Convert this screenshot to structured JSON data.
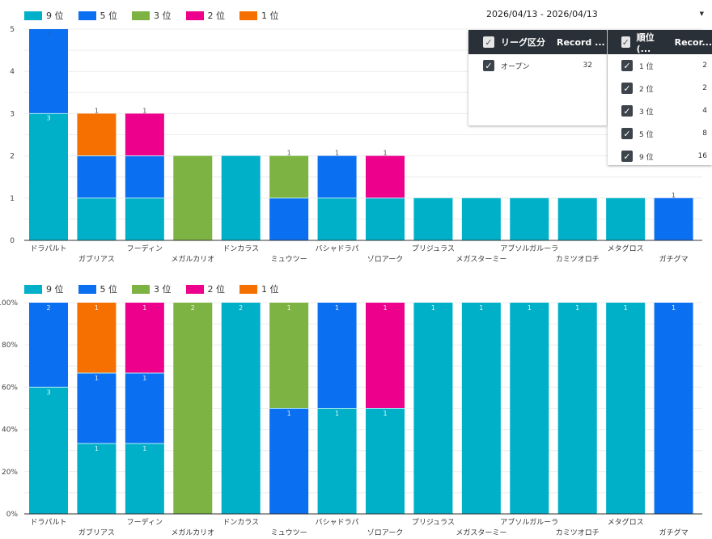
{
  "legend": [
    {
      "label": "9 位",
      "color": "#00b0c8"
    },
    {
      "label": "5 位",
      "color": "#0a6ff0"
    },
    {
      "label": "3 位",
      "color": "#7cb342"
    },
    {
      "label": "2 位",
      "color": "#ec008c"
    },
    {
      "label": "1 位",
      "color": "#f57000"
    }
  ],
  "filters": {
    "date_range": "2026/04/13 - 2026/04/13",
    "league": {
      "header_label": "リーグ区分",
      "header_metric": "Record ...",
      "rows": [
        {
          "label": "オープン",
          "value": "32"
        }
      ]
    },
    "rank": {
      "header_label": "順位 (...",
      "header_metric": "Recor...",
      "rows": [
        {
          "label": "1 位",
          "value": "2"
        },
        {
          "label": "2 位",
          "value": "2"
        },
        {
          "label": "3 位",
          "value": "4"
        },
        {
          "label": "5 位",
          "value": "8"
        },
        {
          "label": "9 位",
          "value": "16"
        }
      ]
    }
  },
  "chart_data": [
    {
      "type": "bar",
      "stacked": true,
      "title": "",
      "xlabel": "",
      "ylabel": "",
      "ylim": [
        0,
        5
      ],
      "yticks": [
        "0",
        "1",
        "2",
        "3",
        "4",
        "5"
      ],
      "grid": true,
      "legend_position": "top-left",
      "categories": [
        "ドラパルト",
        "ガブリアス",
        "フーディン",
        "メガルカリオ",
        "ドンカラス",
        "ミュウツー",
        "バシャドラパ",
        "ゾロアーク",
        "プリジュラス",
        "メガスターミー",
        "アブソルガルーラ",
        "カミツオロチ",
        "メタグロス",
        "ガチグマ"
      ],
      "series": [
        {
          "name": "9 位",
          "values": [
            3,
            1,
            1,
            0,
            2,
            0,
            1,
            1,
            1,
            1,
            1,
            1,
            1,
            0
          ]
        },
        {
          "name": "5 位",
          "values": [
            2,
            1,
            1,
            0,
            0,
            1,
            1,
            0,
            0,
            0,
            0,
            0,
            0,
            1
          ]
        },
        {
          "name": "3 位",
          "values": [
            0,
            0,
            0,
            2,
            0,
            1,
            0,
            0,
            0,
            0,
            0,
            0,
            0,
            0
          ]
        },
        {
          "name": "2 位",
          "values": [
            0,
            0,
            1,
            0,
            0,
            0,
            0,
            1,
            0,
            0,
            0,
            0,
            0,
            0
          ]
        },
        {
          "name": "1 位",
          "values": [
            0,
            1,
            0,
            0,
            0,
            0,
            0,
            0,
            0,
            0,
            0,
            0,
            0,
            0
          ]
        }
      ]
    },
    {
      "type": "bar",
      "stacked": true,
      "normalized": "percent",
      "title": "",
      "xlabel": "",
      "ylabel": "",
      "ylim": [
        0,
        100
      ],
      "yticks": [
        "0%",
        "20%",
        "40%",
        "60%",
        "80%",
        "100%"
      ],
      "grid": true,
      "legend_position": "top-left",
      "categories": [
        "ドラパルト",
        "ガブリアス",
        "フーディン",
        "メガルカリオ",
        "ドンカラス",
        "ミュウツー",
        "バシャドラパ",
        "ゾロアーク",
        "プリジュラス",
        "メガスターミー",
        "アブソルガルーラ",
        "カミツオロチ",
        "メタグロス",
        "ガチグマ"
      ],
      "series": [
        {
          "name": "9 位",
          "values": [
            3,
            1,
            1,
            0,
            2,
            0,
            1,
            1,
            1,
            1,
            1,
            1,
            1,
            0
          ]
        },
        {
          "name": "5 位",
          "values": [
            2,
            1,
            1,
            0,
            0,
            1,
            1,
            0,
            0,
            0,
            0,
            0,
            0,
            1
          ]
        },
        {
          "name": "3 位",
          "values": [
            0,
            0,
            0,
            2,
            0,
            1,
            0,
            0,
            0,
            0,
            0,
            0,
            0,
            0
          ]
        },
        {
          "name": "2 位",
          "values": [
            0,
            0,
            1,
            0,
            0,
            0,
            0,
            1,
            0,
            0,
            0,
            0,
            0,
            0
          ]
        },
        {
          "name": "1 位",
          "values": [
            0,
            1,
            0,
            0,
            0,
            0,
            0,
            0,
            0,
            0,
            0,
            0,
            0,
            0
          ]
        }
      ]
    }
  ]
}
